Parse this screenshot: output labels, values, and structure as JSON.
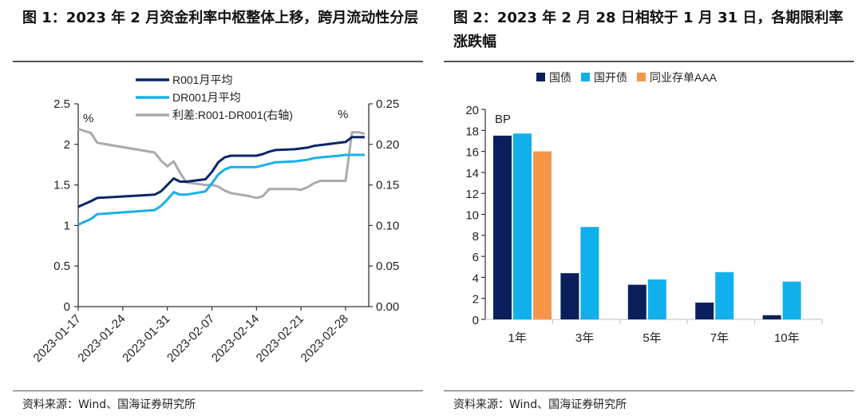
{
  "figures": {
    "left": {
      "title": "图 1：2023 年 2 月资金利率中枢整体上移，跨月流动性分层",
      "source": "资料来源：Wind、国海证券研究所"
    },
    "right": {
      "title": "图 2：2023 年 2 月 28 日相较于 1 月 31 日，各期限利率涨跌幅",
      "source": "资料来源：Wind、国海证券研究所"
    }
  },
  "chart_data": [
    {
      "type": "line",
      "title": "2023年2月资金利率中枢整体上移，跨月流动性分层",
      "y_unit_left": "%",
      "y_unit_right": "%",
      "ylim_left": [
        0,
        2.5
      ],
      "ylim_right": [
        0,
        0.25
      ],
      "yticks_left": [
        "0",
        "0.5",
        "1",
        "1.5",
        "2",
        "2.5"
      ],
      "yticks_right": [
        "0.00",
        "0.05",
        "0.10",
        "0.15",
        "0.20",
        "0.25"
      ],
      "xticks": [
        "2023-01-17",
        "2023-01-24",
        "2023-01-31",
        "2023-02-07",
        "2023-02-14",
        "2023-02-21",
        "2023-02-28"
      ],
      "legend_position": "top-center",
      "x": [
        "2023-01-17",
        "2023-01-19",
        "2023-01-20",
        "2023-01-29",
        "2023-01-30",
        "2023-01-31",
        "2023-02-01",
        "2023-02-02",
        "2023-02-03",
        "2023-02-06",
        "2023-02-07",
        "2023-02-08",
        "2023-02-09",
        "2023-02-10",
        "2023-02-13",
        "2023-02-14",
        "2023-02-15",
        "2023-02-16",
        "2023-02-17",
        "2023-02-20",
        "2023-02-21",
        "2023-02-22",
        "2023-02-23",
        "2023-02-24",
        "2023-02-27",
        "2023-02-28",
        "2023-03-01",
        "2023-03-02",
        "2023-03-03"
      ],
      "series": [
        {
          "name": "R001月平均",
          "axis": "left",
          "color": "#0b2566",
          "values": [
            1.23,
            1.3,
            1.34,
            1.38,
            1.42,
            1.5,
            1.58,
            1.54,
            1.54,
            1.57,
            1.66,
            1.78,
            1.84,
            1.86,
            1.86,
            1.86,
            1.88,
            1.91,
            1.93,
            1.94,
            1.95,
            1.96,
            1.98,
            1.99,
            2.02,
            2.03,
            2.09,
            2.09,
            2.09
          ]
        },
        {
          "name": "DR001月平均",
          "axis": "left",
          "color": "#19b0ea",
          "values": [
            1.01,
            1.08,
            1.14,
            1.19,
            1.24,
            1.32,
            1.41,
            1.38,
            1.38,
            1.42,
            1.52,
            1.63,
            1.69,
            1.72,
            1.72,
            1.72,
            1.74,
            1.76,
            1.78,
            1.79,
            1.8,
            1.81,
            1.83,
            1.84,
            1.86,
            1.87,
            1.87,
            1.87,
            1.87
          ]
        },
        {
          "name": "利差:R001-DR001(右轴)",
          "axis": "right",
          "color": "#aaaaaa",
          "values": [
            0.219,
            0.214,
            0.202,
            0.19,
            0.18,
            0.173,
            0.179,
            0.165,
            0.153,
            0.15,
            0.15,
            0.148,
            0.143,
            0.14,
            0.136,
            0.134,
            0.136,
            0.145,
            0.145,
            0.145,
            0.144,
            0.147,
            0.152,
            0.155,
            0.155,
            0.155,
            0.215,
            0.215,
            0.213
          ]
        }
      ]
    },
    {
      "type": "bar",
      "title": "2023年2月28日相较于1月31日，各期限利率涨跌幅",
      "y_unit": "BP",
      "ylim": [
        0,
        20
      ],
      "yticks": [
        "0",
        "2",
        "4",
        "6",
        "8",
        "10",
        "12",
        "14",
        "16",
        "18",
        "20"
      ],
      "categories": [
        "1年",
        "3年",
        "5年",
        "7年",
        "10年"
      ],
      "legend_position": "top-center",
      "series": [
        {
          "name": "国债",
          "color": "#0b1f5c",
          "values": [
            17.5,
            4.4,
            3.3,
            1.6,
            0.4
          ]
        },
        {
          "name": "国开债",
          "color": "#10b0ec",
          "values": [
            17.7,
            8.8,
            3.8,
            4.5,
            3.6
          ]
        },
        {
          "name": "同业存单AAA",
          "color": "#f5964a",
          "values": [
            16.0,
            null,
            null,
            null,
            null
          ]
        }
      ]
    }
  ]
}
